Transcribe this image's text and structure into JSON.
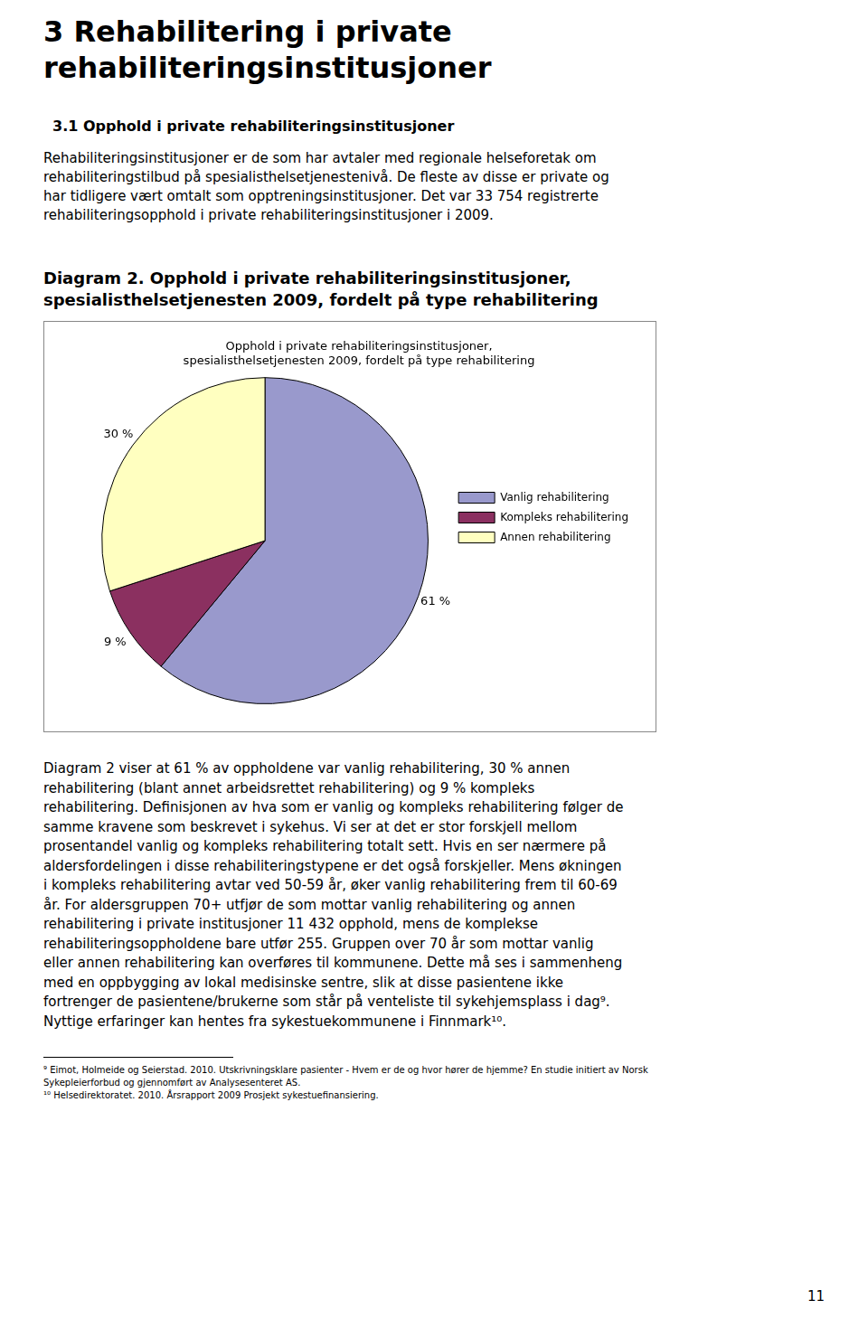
{
  "chart_data": {
    "type": "pie",
    "title": [
      "Opphold i private rehabiliteringsinstitusjoner,",
      "spesialisthelsetjenesten 2009, fordelt på type rehabilitering"
    ],
    "categories": [
      "Vanlig rehabilitering",
      "Kompleks rehabilitering",
      "Annen rehabilitering"
    ],
    "values": [
      61,
      9,
      30
    ],
    "value_labels": [
      "61 %",
      "9 %",
      "30 %"
    ],
    "colors": [
      "#9999CC",
      "#8B3060",
      "#FFFFC0"
    ],
    "data_labels": true,
    "legend": "right"
  },
  "page": {
    "heading": [
      "3   Rehabilitering i private",
      "rehabiliteringsinstitusjoner"
    ],
    "section": "3.1    Opphold i private rehabiliteringsinstitusjoner",
    "paragraph1": [
      "Rehabiliteringsinstitusjoner er de som har avtaler med regionale helseforetak om",
      "rehabiliteringstilbud på spesialisthelsetjenestenivå. De fleste av disse er private og",
      "har tidligere vært omtalt som opptreningsinstitusjoner. Det var 33 754 registrerte",
      "rehabiliteringsopphold i private rehabiliteringsinstitusjoner i 2009."
    ],
    "caption": [
      "Diagram 2. Opphold i private rehabiliteringsinstitusjoner,",
      "spesialisthelsetjenesten 2009, fordelt på type rehabilitering"
    ],
    "paragraph2": [
      "Diagram 2 viser at 61 % av oppholdene var vanlig rehabilitering, 30 % annen",
      "rehabilitering (blant annet arbeidsrettet rehabilitering) og 9 % kompleks",
      "rehabilitering. Definisjonen av hva som er vanlig og kompleks rehabilitering følger de",
      "samme kravene som beskrevet i sykehus. Vi ser at det er stor forskjell mellom",
      "prosentandel vanlig og kompleks rehabilitering totalt sett. Hvis en ser nærmere på",
      "aldersfordelingen i disse rehabiliteringstypene er det også forskjeller. Mens økningen",
      "i kompleks rehabilitering avtar ved 50-59 år, øker vanlig rehabilitering frem til 60-69",
      "år. For aldersgruppen 70+ utfjør de som mottar vanlig rehabilitering og annen",
      "rehabilitering i private institusjoner 11 432 opphold, mens de komplekse",
      "rehabiliteringsoppholdene bare utfør 255. Gruppen over 70 år som mottar vanlig",
      "eller annen rehabilitering kan overføres til kommunene. Dette må ses i sammenheng",
      "med en oppbygging av lokal medisinske sentre, slik at disse pasientene ikke",
      "fortrenger de pasientene/brukerne som står på venteliste til sykehjemsplass i dag⁹.",
      "Nyttige erfaringer kan hentes fra sykestuekommunene i Finnmark¹⁰."
    ],
    "footnotes": [
      "⁹ Eimot, Holmeide og  Seierstad. 2010. Utskrivningsklare pasienter - Hvem er de og hvor hører de hjemme? En studie  initiert av Norsk",
      "Sykepleierforbud og gjennomført av  Analysesenteret AS.",
      "¹⁰ Helsedirektoratet. 2010. Årsrapport 2009 Prosjekt sykestuefinansiering."
    ],
    "page_number": "11"
  }
}
